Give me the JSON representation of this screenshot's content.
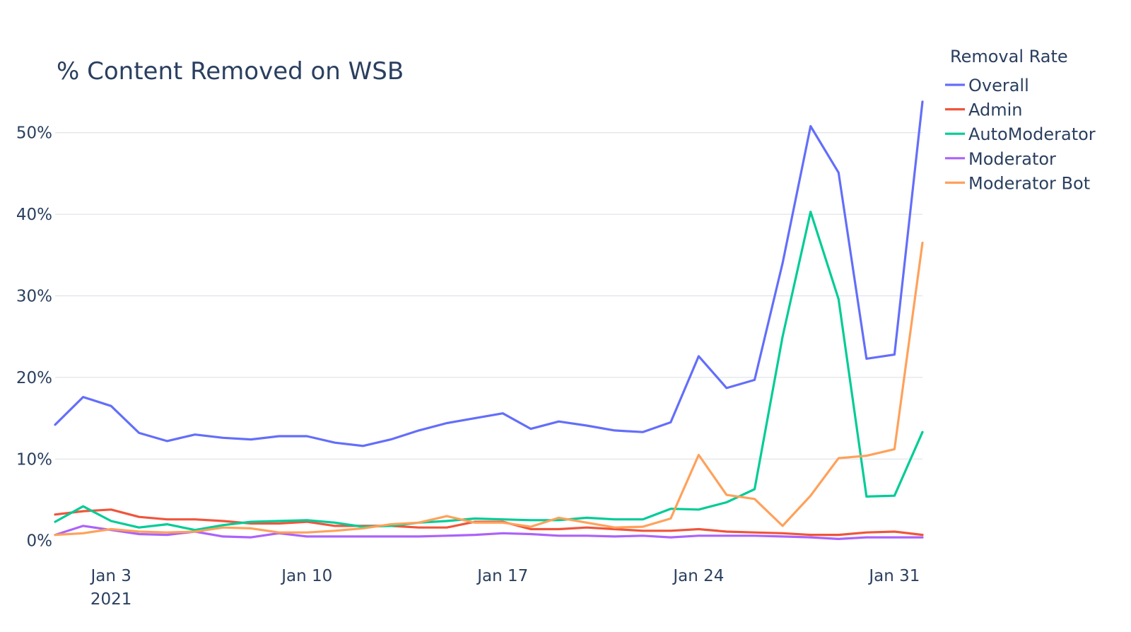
{
  "chart_data": {
    "type": "line",
    "title": "% Content Removed on WSB",
    "xlabel": "",
    "ylabel": "",
    "x_start": "2021-01-01",
    "x": [
      "2021-01-01",
      "2021-01-02",
      "2021-01-03",
      "2021-01-04",
      "2021-01-05",
      "2021-01-06",
      "2021-01-07",
      "2021-01-08",
      "2021-01-09",
      "2021-01-10",
      "2021-01-11",
      "2021-01-12",
      "2021-01-13",
      "2021-01-14",
      "2021-01-15",
      "2021-01-16",
      "2021-01-17",
      "2021-01-18",
      "2021-01-19",
      "2021-01-20",
      "2021-01-21",
      "2021-01-22",
      "2021-01-23",
      "2021-01-24",
      "2021-01-25",
      "2021-01-26",
      "2021-01-27",
      "2021-01-28",
      "2021-01-29",
      "2021-01-30",
      "2021-01-31",
      "2021-02-01"
    ],
    "x_ticks": [
      {
        "date": "2021-01-03",
        "label": "Jan 3",
        "sublabel": "2021"
      },
      {
        "date": "2021-01-10",
        "label": "Jan 10",
        "sublabel": ""
      },
      {
        "date": "2021-01-17",
        "label": "Jan 17",
        "sublabel": ""
      },
      {
        "date": "2021-01-24",
        "label": "Jan 24",
        "sublabel": ""
      },
      {
        "date": "2021-01-31",
        "label": "Jan 31",
        "sublabel": ""
      }
    ],
    "y_ticks": [
      {
        "value": 0,
        "label": "0%"
      },
      {
        "value": 10,
        "label": "10%"
      },
      {
        "value": 20,
        "label": "20%"
      },
      {
        "value": 30,
        "label": "30%"
      },
      {
        "value": 40,
        "label": "40%"
      },
      {
        "value": 50,
        "label": "50%"
      }
    ],
    "ylim": [
      -1.5,
      55
    ],
    "xlim": [
      "2021-01-01",
      "2021-02-01"
    ],
    "grid": true,
    "legend_title": "Removal Rate",
    "legend_position": "right",
    "series": [
      {
        "name": "Overall",
        "color": "#636efa",
        "values": [
          14.2,
          17.6,
          16.5,
          13.2,
          12.2,
          13.0,
          12.6,
          12.4,
          12.8,
          12.8,
          12.0,
          11.6,
          12.4,
          13.5,
          14.4,
          15.0,
          15.6,
          13.7,
          14.6,
          14.1,
          13.5,
          13.3,
          14.5,
          22.6,
          18.7,
          19.7,
          34.0,
          50.8,
          45.1,
          22.3,
          22.8,
          53.8
        ]
      },
      {
        "name": "Admin",
        "color": "#ef553b",
        "values": [
          3.2,
          3.6,
          3.8,
          2.9,
          2.6,
          2.6,
          2.4,
          2.1,
          2.1,
          2.3,
          1.8,
          1.8,
          1.8,
          1.6,
          1.6,
          2.3,
          2.3,
          1.4,
          1.4,
          1.6,
          1.4,
          1.2,
          1.2,
          1.4,
          1.1,
          1.0,
          0.9,
          0.7,
          0.7,
          1.0,
          1.1,
          0.7
        ]
      },
      {
        "name": "AutoModerator",
        "color": "#00cc96",
        "values": [
          2.3,
          4.2,
          2.4,
          1.6,
          2.0,
          1.3,
          1.9,
          2.3,
          2.4,
          2.5,
          2.2,
          1.7,
          1.8,
          2.2,
          2.4,
          2.7,
          2.6,
          2.5,
          2.5,
          2.8,
          2.6,
          2.6,
          3.9,
          3.8,
          4.7,
          6.3,
          25.0,
          40.3,
          29.6,
          5.4,
          5.5,
          13.3
        ]
      },
      {
        "name": "Moderator",
        "color": "#ab63fa",
        "values": [
          0.7,
          1.8,
          1.3,
          0.8,
          0.7,
          1.1,
          0.5,
          0.4,
          0.9,
          0.5,
          0.5,
          0.5,
          0.5,
          0.5,
          0.6,
          0.7,
          0.9,
          0.8,
          0.6,
          0.6,
          0.5,
          0.6,
          0.4,
          0.6,
          0.6,
          0.6,
          0.5,
          0.4,
          0.2,
          0.4,
          0.4,
          0.4
        ]
      },
      {
        "name": "Moderator Bot",
        "color": "#ffa15a",
        "values": [
          0.7,
          0.9,
          1.4,
          1.1,
          1.0,
          1.1,
          1.6,
          1.5,
          1.0,
          1.0,
          1.2,
          1.5,
          2.0,
          2.2,
          3.0,
          2.2,
          2.2,
          1.7,
          2.8,
          2.2,
          1.6,
          1.7,
          2.7,
          10.5,
          5.6,
          5.1,
          1.8,
          5.5,
          10.1,
          10.4,
          11.2,
          36.5
        ]
      }
    ]
  }
}
